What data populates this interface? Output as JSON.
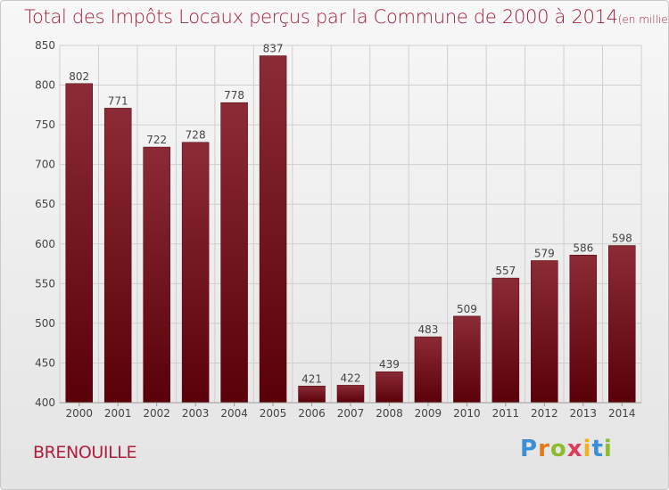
{
  "title": "Total des Impôts Locaux perçus par la Commune de 2000 à 2014",
  "unit_note": "(en milliers d'€)",
  "commune": "BRENOUILLE",
  "logo": {
    "text": "Proxiti",
    "letter_colors": [
      "#3b8fd4",
      "#e07b1a",
      "#8cbc2c",
      "#e03a5a",
      "#f2b01e",
      "#3b8fd4",
      "#8cbc2c"
    ]
  },
  "colors": {
    "bar_top": "#8b2b36",
    "bar_bottom": "#5a0008",
    "grid": "#cfcfcf",
    "text": "#444444",
    "title": "#a11d3a"
  },
  "chart_data": {
    "type": "bar",
    "title": "Total des Impôts Locaux perçus par la Commune de 2000 à 2014",
    "categories": [
      "2000",
      "2001",
      "2002",
      "2003",
      "2004",
      "2005",
      "2006",
      "2007",
      "2008",
      "2009",
      "2010",
      "2011",
      "2012",
      "2013",
      "2014"
    ],
    "values": [
      802,
      771,
      722,
      728,
      778,
      837,
      421,
      422,
      439,
      483,
      509,
      557,
      579,
      586,
      598
    ],
    "ylim": [
      400,
      850
    ],
    "yticks": [
      400,
      450,
      500,
      550,
      600,
      650,
      700,
      750,
      800,
      850
    ],
    "grid": true,
    "data_labels": true,
    "xlabel": "",
    "ylabel": ""
  }
}
